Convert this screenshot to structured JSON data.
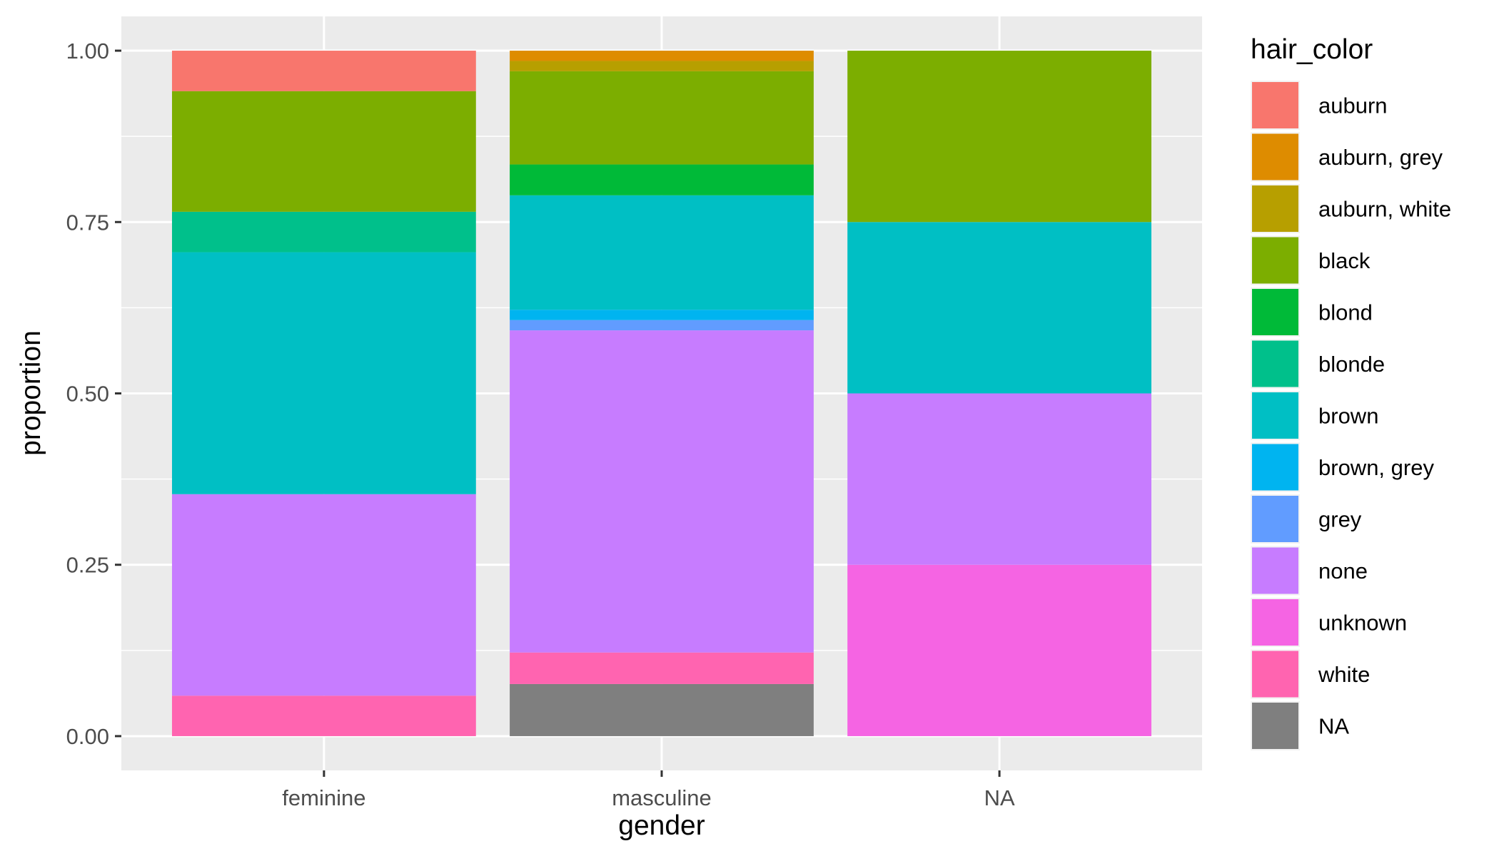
{
  "chart_data": {
    "type": "bar",
    "stacked": true,
    "categories": [
      "feminine",
      "masculine",
      "NA"
    ],
    "xlabel": "gender",
    "ylabel": "proportion",
    "ylim": [
      -0.05,
      1.05
    ],
    "yticks": [
      0,
      0.25,
      0.5,
      0.75,
      1
    ],
    "ytick_labels": [
      "0.00",
      "0.25",
      "0.50",
      "0.75",
      "1.00"
    ],
    "grid": true,
    "legend": {
      "title": "hair_color",
      "position": "right"
    },
    "series": [
      {
        "name": "auburn",
        "color": "#F8766D",
        "values": [
          0.059,
          0,
          0
        ]
      },
      {
        "name": "auburn, grey",
        "color": "#DE8C00",
        "values": [
          0,
          0.015,
          0
        ]
      },
      {
        "name": "auburn, white",
        "color": "#B79F00",
        "values": [
          0,
          0.015,
          0
        ]
      },
      {
        "name": "black",
        "color": "#7CAE00",
        "values": [
          0.176,
          0.136,
          0.25
        ]
      },
      {
        "name": "blond",
        "color": "#00BA38",
        "values": [
          0,
          0.045,
          0
        ]
      },
      {
        "name": "blonde",
        "color": "#00C08B",
        "values": [
          0.059,
          0,
          0
        ]
      },
      {
        "name": "brown",
        "color": "#00BFC4",
        "values": [
          0.353,
          0.167,
          0.25
        ]
      },
      {
        "name": "brown, grey",
        "color": "#00B4F0",
        "values": [
          0,
          0.015,
          0
        ]
      },
      {
        "name": "grey",
        "color": "#619CFF",
        "values": [
          0,
          0.015,
          0
        ]
      },
      {
        "name": "none",
        "color": "#C77CFF",
        "values": [
          0.294,
          0.47,
          0.25
        ]
      },
      {
        "name": "unknown",
        "color": "#F564E3",
        "values": [
          0,
          0,
          0.25
        ]
      },
      {
        "name": "white",
        "color": "#FF64B0",
        "values": [
          0.059,
          0.046,
          0
        ]
      },
      {
        "name": "NA",
        "color": "#7F7F7F",
        "values": [
          0,
          0.076,
          0
        ]
      }
    ]
  }
}
